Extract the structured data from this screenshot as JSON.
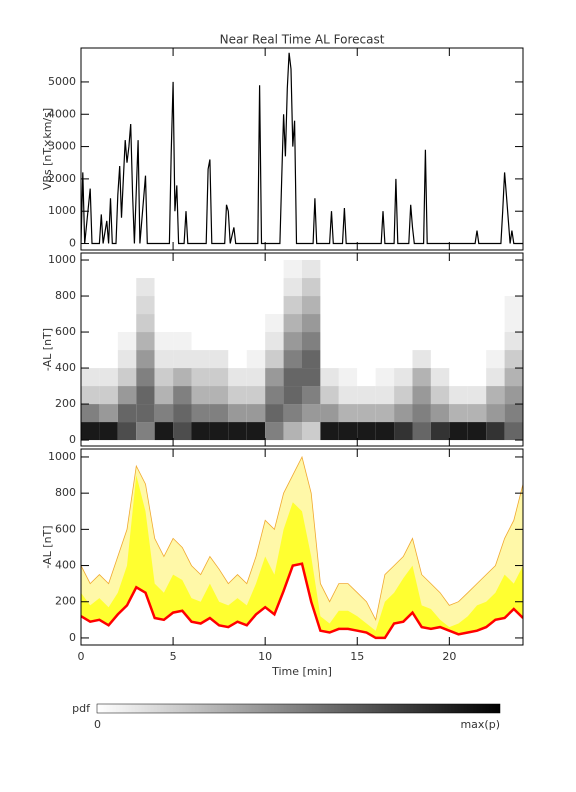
{
  "chart_data": [
    {
      "type": "line",
      "title": "Near Real Time AL Forecast",
      "ylabel": "VBs [nT×km/s]",
      "color": "#000000",
      "x": [
        0,
        0.1,
        0.2,
        0.5,
        0.6,
        1.0,
        1.1,
        1.2,
        1.4,
        1.5,
        1.6,
        1.7,
        1.9,
        2.0,
        2.1,
        2.2,
        2.4,
        2.5,
        2.6,
        2.7,
        2.8,
        2.9,
        3.1,
        3.2,
        3.5,
        3.6,
        4.8,
        4.9,
        5.0,
        5.1,
        5.2,
        5.3,
        5.6,
        5.7,
        5.8,
        6.8,
        6.9,
        7.0,
        7.1,
        7.8,
        7.9,
        8.0,
        8.1,
        8.3,
        8.4,
        9.6,
        9.7,
        9.8,
        10.8,
        10.9,
        11.0,
        11.1,
        11.2,
        11.3,
        11.4,
        11.5,
        11.6,
        11.7,
        12.6,
        12.7,
        12.8,
        13.5,
        13.6,
        13.7,
        14.2,
        14.3,
        14.4,
        16.3,
        16.4,
        16.5,
        17.0,
        17.1,
        17.2,
        17.8,
        17.9,
        18.0,
        18.1,
        18.6,
        18.7,
        18.8,
        21.4,
        21.5,
        21.6,
        22.8,
        22.9,
        23.0,
        23.1,
        23.3,
        23.4,
        23.5,
        24
      ],
      "values": [
        0,
        2200,
        0,
        1700,
        0,
        0,
        900,
        0,
        700,
        0,
        1400,
        0,
        0,
        1500,
        2400,
        800,
        3200,
        2500,
        3000,
        3700,
        1500,
        0,
        3200,
        0,
        2100,
        0,
        0,
        2800,
        5000,
        1000,
        1800,
        0,
        0,
        1000,
        0,
        0,
        2300,
        2600,
        0,
        0,
        1200,
        1000,
        0,
        500,
        0,
        0,
        4900,
        0,
        0,
        2000,
        4000,
        2700,
        4800,
        5900,
        5400,
        3000,
        3800,
        0,
        0,
        1400,
        0,
        0,
        1000,
        0,
        0,
        1100,
        0,
        0,
        1000,
        0,
        0,
        2000,
        0,
        0,
        1200,
        500,
        0,
        0,
        2900,
        0,
        0,
        400,
        0,
        0,
        1000,
        2200,
        1500,
        0,
        400,
        0,
        0
      ],
      "xlim": [
        0,
        24
      ],
      "ylim": [
        -200,
        6050
      ],
      "yticks": [
        0,
        1000,
        2000,
        3000,
        4000,
        5000
      ]
    },
    {
      "type": "heatmap",
      "ylabel": "-AL [nT]",
      "x_bins": [
        0,
        1,
        2,
        3,
        4,
        5,
        6,
        7,
        8,
        9,
        10,
        11,
        12,
        13,
        14,
        15,
        16,
        17,
        18,
        19,
        20,
        21,
        22,
        23,
        24
      ],
      "y_bins": [
        0,
        100,
        200,
        300,
        400,
        500,
        600,
        700,
        800,
        900,
        1000
      ],
      "z": [
        [
          0.9,
          0.5,
          0.2,
          0.1,
          0,
          0,
          0,
          0,
          0,
          0
        ],
        [
          0.9,
          0.4,
          0.2,
          0.1,
          0,
          0,
          0,
          0,
          0,
          0
        ],
        [
          0.7,
          0.6,
          0.4,
          0.2,
          0.1,
          0.05,
          0,
          0,
          0,
          0
        ],
        [
          0.5,
          0.6,
          0.6,
          0.5,
          0.4,
          0.3,
          0.2,
          0.15,
          0.1,
          0
        ],
        [
          0.9,
          0.5,
          0.3,
          0.2,
          0.1,
          0.05,
          0,
          0,
          0,
          0
        ],
        [
          0.7,
          0.6,
          0.5,
          0.3,
          0.1,
          0.05,
          0,
          0,
          0,
          0
        ],
        [
          0.9,
          0.5,
          0.3,
          0.2,
          0.1,
          0,
          0,
          0,
          0,
          0
        ],
        [
          0.9,
          0.5,
          0.3,
          0.2,
          0.1,
          0,
          0,
          0,
          0,
          0
        ],
        [
          0.9,
          0.4,
          0.2,
          0.1,
          0,
          0,
          0,
          0,
          0,
          0
        ],
        [
          0.9,
          0.4,
          0.2,
          0.1,
          0.05,
          0,
          0,
          0,
          0,
          0
        ],
        [
          0.5,
          0.6,
          0.5,
          0.4,
          0.2,
          0.1,
          0.05,
          0,
          0,
          0
        ],
        [
          0.3,
          0.5,
          0.6,
          0.6,
          0.5,
          0.4,
          0.3,
          0.2,
          0.1,
          0.05
        ],
        [
          0.2,
          0.4,
          0.5,
          0.6,
          0.6,
          0.5,
          0.4,
          0.3,
          0.2,
          0.1
        ],
        [
          0.9,
          0.4,
          0.2,
          0.1,
          0,
          0,
          0,
          0,
          0,
          0
        ],
        [
          0.9,
          0.3,
          0.1,
          0.05,
          0,
          0,
          0,
          0,
          0,
          0
        ],
        [
          0.9,
          0.3,
          0.1,
          0,
          0,
          0,
          0,
          0,
          0,
          0
        ],
        [
          0.9,
          0.3,
          0.1,
          0.05,
          0,
          0,
          0,
          0,
          0,
          0
        ],
        [
          0.8,
          0.4,
          0.2,
          0.1,
          0,
          0,
          0,
          0,
          0,
          0
        ],
        [
          0.6,
          0.5,
          0.4,
          0.3,
          0.1,
          0,
          0,
          0,
          0,
          0
        ],
        [
          0.8,
          0.4,
          0.2,
          0.1,
          0,
          0,
          0,
          0,
          0,
          0
        ],
        [
          0.9,
          0.3,
          0.1,
          0,
          0,
          0,
          0,
          0,
          0,
          0
        ],
        [
          0.9,
          0.3,
          0.1,
          0,
          0,
          0,
          0,
          0,
          0,
          0
        ],
        [
          0.8,
          0.4,
          0.3,
          0.1,
          0.05,
          0,
          0,
          0,
          0,
          0
        ],
        [
          0.6,
          0.5,
          0.4,
          0.3,
          0.2,
          0.1,
          0.05,
          0.05,
          0,
          0
        ]
      ],
      "xlim": [
        0,
        24
      ],
      "ylim": [
        -33,
        1039
      ],
      "yticks": [
        0,
        200,
        400,
        600,
        800,
        1000
      ],
      "colorbar": {
        "label": "pdf",
        "min_label": "0",
        "max_label": "max(p)"
      }
    },
    {
      "type": "band",
      "ylabel": "-AL [nT]",
      "xlabel": "Time [min]",
      "x": [
        0,
        0.5,
        1,
        1.5,
        2,
        2.5,
        3,
        3.5,
        4,
        4.5,
        5,
        5.5,
        6,
        6.5,
        7,
        7.5,
        8,
        8.5,
        9,
        9.5,
        10,
        10.5,
        11,
        11.5,
        12,
        12.5,
        13,
        13.5,
        14,
        14.5,
        15,
        15.5,
        16,
        16.5,
        17,
        17.5,
        18,
        18.5,
        19,
        19.5,
        20,
        20.5,
        21,
        21.5,
        22,
        22.5,
        23,
        23.5,
        24
      ],
      "outer": {
        "color": "#fff8a8",
        "edge_color": "#f0a830",
        "values": [
          400,
          300,
          350,
          300,
          450,
          600,
          950,
          850,
          550,
          450,
          550,
          500,
          400,
          350,
          450,
          380,
          300,
          350,
          300,
          450,
          650,
          600,
          800,
          900,
          1000,
          800,
          300,
          200,
          300,
          300,
          250,
          200,
          100,
          350,
          400,
          450,
          550,
          350,
          300,
          250,
          180,
          200,
          250,
          300,
          350,
          400,
          550,
          650,
          850
        ]
      },
      "inner": {
        "color": "#ffff30",
        "values": [
          250,
          180,
          220,
          170,
          250,
          400,
          900,
          700,
          300,
          250,
          350,
          320,
          220,
          200,
          300,
          200,
          180,
          220,
          180,
          300,
          450,
          350,
          600,
          750,
          700,
          450,
          120,
          80,
          150,
          150,
          120,
          80,
          40,
          200,
          250,
          330,
          400,
          180,
          160,
          100,
          60,
          80,
          120,
          180,
          200,
          250,
          350,
          300,
          400
        ]
      },
      "median": {
        "color": "#ff0000",
        "values": [
          120,
          90,
          100,
          70,
          130,
          180,
          280,
          250,
          110,
          100,
          140,
          150,
          90,
          80,
          110,
          70,
          60,
          90,
          70,
          130,
          170,
          130,
          260,
          400,
          410,
          200,
          40,
          30,
          50,
          50,
          40,
          30,
          0,
          0,
          80,
          90,
          140,
          60,
          50,
          60,
          40,
          20,
          30,
          40,
          60,
          100,
          110,
          160,
          110
        ]
      },
      "xlim": [
        0,
        24
      ],
      "ylim": [
        -39,
        1044
      ],
      "yticks": [
        0,
        200,
        400,
        600,
        800,
        1000
      ],
      "xticks": [
        0,
        5,
        10,
        15,
        20
      ]
    }
  ]
}
